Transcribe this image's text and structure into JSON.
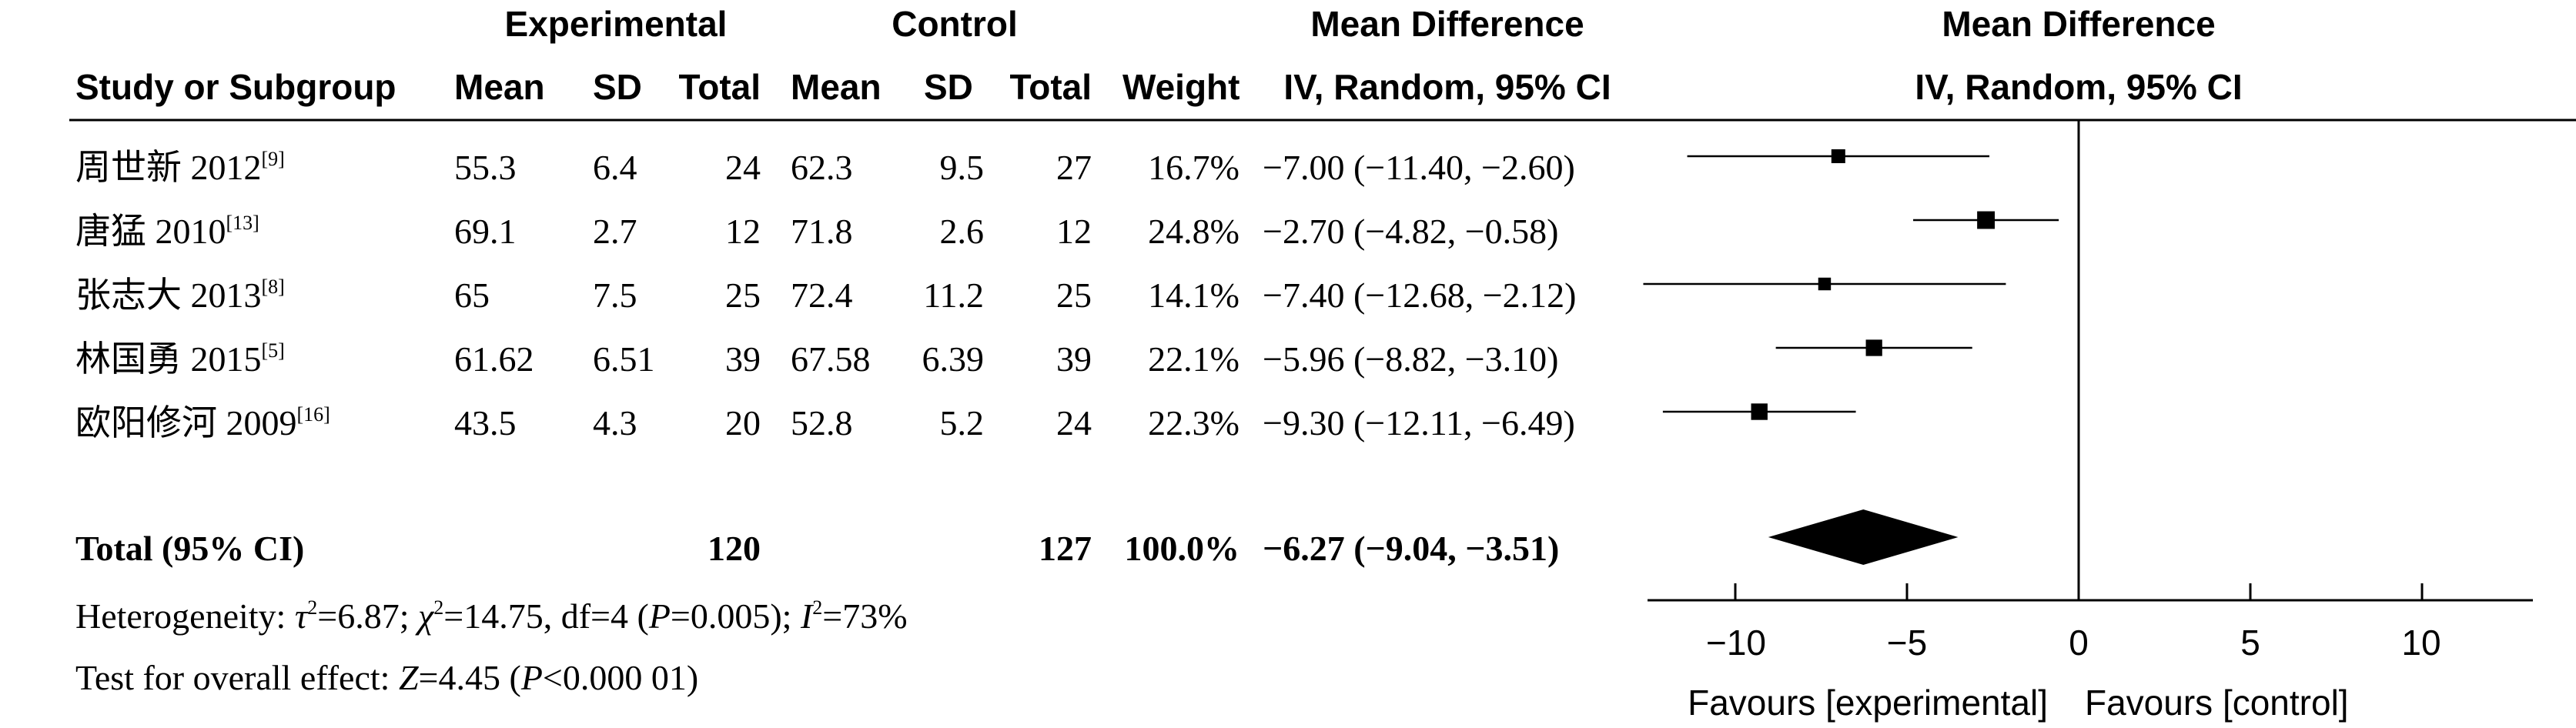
{
  "header": {
    "group_experimental": "Experimental",
    "group_control": "Control",
    "mean_difference_left": "Mean Difference",
    "mean_difference_right": "Mean Difference",
    "study": "Study or Subgroup",
    "mean_e": "Mean",
    "sd_e": "SD",
    "total_e": "Total",
    "mean_c": "Mean",
    "sd_c": "SD",
    "total_c": "Total",
    "weight": "Weight",
    "ci_left": "IV, Random, 95% CI",
    "ci_right": "IV, Random, 95% CI"
  },
  "studies": [
    {
      "name": "周世新 2012",
      "ref": "[9]",
      "mean_e": "55.3",
      "sd_e": "6.4",
      "total_e": "24",
      "mean_c": "62.3",
      "sd_c": "9.5",
      "total_c": "27",
      "weight": "16.7%",
      "ci": "−7.00 (−11.40, −2.60)"
    },
    {
      "name": "唐猛 2010",
      "ref": "[13]",
      "mean_e": "69.1",
      "sd_e": "2.7",
      "total_e": "12",
      "mean_c": "71.8",
      "sd_c": "2.6",
      "total_c": "12",
      "weight": "24.8%",
      "ci": "−2.70 (−4.82, −0.58)"
    },
    {
      "name": "张志大 2013",
      "ref": "[8]",
      "mean_e": "65",
      "sd_e": "7.5",
      "total_e": "25",
      "mean_c": "72.4",
      "sd_c": "11.2",
      "total_c": "25",
      "weight": "14.1%",
      "ci": "−7.40 (−12.68, −2.12)"
    },
    {
      "name": "林国勇 2015",
      "ref": "[5]",
      "mean_e": "61.62",
      "sd_e": "6.51",
      "total_e": "39",
      "mean_c": "67.58",
      "sd_c": "6.39",
      "total_c": "39",
      "weight": "22.1%",
      "ci": "−5.96 (−8.82, −3.10)"
    },
    {
      "name": "欧阳修河 2009",
      "ref": "[16]",
      "mean_e": "43.5",
      "sd_e": "4.3",
      "total_e": "20",
      "mean_c": "52.8",
      "sd_c": "5.2",
      "total_c": "24",
      "weight": "22.3%",
      "ci": "−9.30 (−12.11, −6.49)"
    }
  ],
  "total": {
    "label": "Total (95% CI)",
    "total_e": "120",
    "total_c": "127",
    "weight": "100.0%",
    "ci": "−6.27 (−9.04, −3.51)"
  },
  "heterogeneity": {
    "prefix": "Heterogeneity: ",
    "tau_sym": "τ",
    "tau_val": "=6.87; ",
    "chi_sym": "χ",
    "chi_val": "=14.75, df=4 (",
    "p_sym": "P",
    "p_val": "=0.005); ",
    "i_sym": "I",
    "i_val": "=73%",
    "sq": "2"
  },
  "overall": {
    "prefix": "Test for overall effect: ",
    "z_sym": "Z",
    "z_val": "=4.45 (",
    "p_sym": "P",
    "p_val": "<0.000 01)"
  },
  "axis": {
    "ticks": [
      "−10",
      "−5",
      "0",
      "5",
      "10"
    ],
    "favours_left": "Favours [experimental]",
    "favours_right": "Favours [control]"
  },
  "chart_data": {
    "type": "forest",
    "xlim": [
      -13,
      13
    ],
    "ticks": [
      -10,
      -5,
      0,
      5,
      10
    ],
    "studies": [
      {
        "name": "周世新 2012",
        "md": -7.0,
        "lo": -11.4,
        "hi": -2.6,
        "weight": 16.7
      },
      {
        "name": "唐猛 2010",
        "md": -2.7,
        "lo": -4.82,
        "hi": -0.58,
        "weight": 24.8
      },
      {
        "name": "张志大 2013",
        "md": -7.4,
        "lo": -12.68,
        "hi": -2.12,
        "weight": 14.1
      },
      {
        "name": "林国勇 2015",
        "md": -5.96,
        "lo": -8.82,
        "hi": -3.1,
        "weight": 22.1
      },
      {
        "name": "欧阳修河 2009",
        "md": -9.3,
        "lo": -12.11,
        "hi": -6.49,
        "weight": 22.3
      }
    ],
    "pooled": {
      "md": -6.27,
      "lo": -9.04,
      "hi": -3.51
    }
  }
}
